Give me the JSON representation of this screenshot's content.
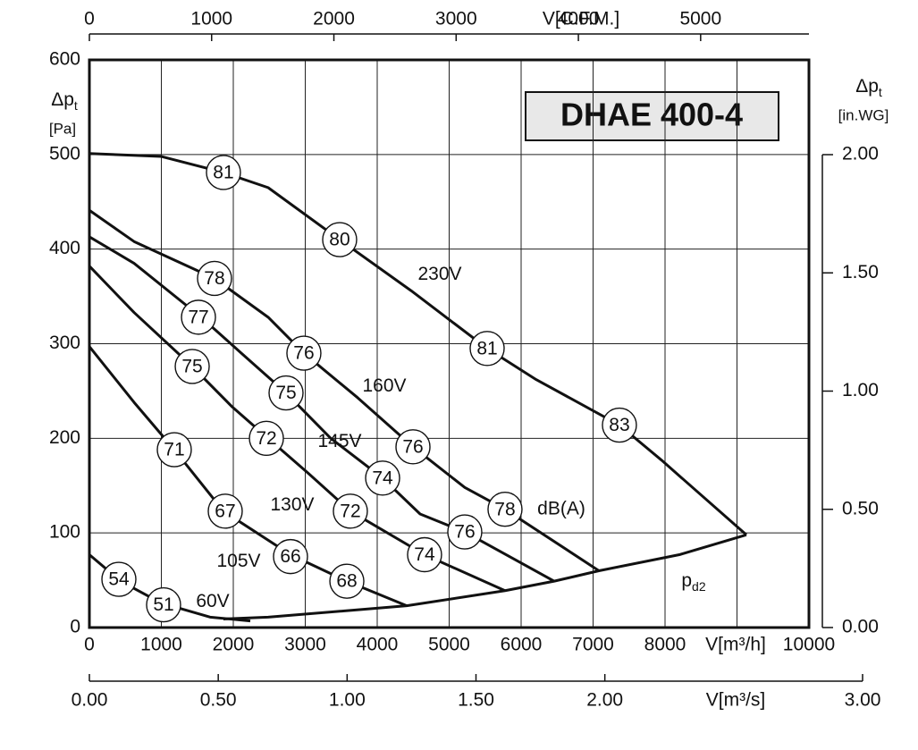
{
  "chart_data": {
    "type": "line",
    "title": "DHAE 400-4",
    "y_label": {
      "main": "Δp",
      "sub": "t",
      "unit": "[Pa]"
    },
    "y2_label": {
      "main": "Δp",
      "sub": "t",
      "unit": "[in.WG]"
    },
    "x_label": "V[m³/h]",
    "x2_label": "V[C.F.M.]",
    "x3_label": "V[m³/s]",
    "xlim": [
      0,
      10000
    ],
    "xticks": [
      0,
      1000,
      2000,
      3000,
      4000,
      5000,
      6000,
      7000,
      8000,
      {
        "value": 9000,
        "label": null
      },
      10000
    ],
    "ylim": [
      0,
      600
    ],
    "yticks": [
      0,
      100,
      200,
      300,
      400,
      500,
      600
    ],
    "x2lim": [
      0,
      5886
    ],
    "x2ticks": [
      0,
      1000,
      2000,
      3000,
      4000,
      5000
    ],
    "x3lim": [
      0,
      3
    ],
    "x3ticks": [
      {
        "value": 0,
        "label": "0.00"
      },
      {
        "value": 0.5,
        "label": "0.50"
      },
      {
        "value": 1,
        "label": "1.00"
      },
      {
        "value": 1.5,
        "label": "1.50"
      },
      {
        "value": 2,
        "label": "2.00"
      },
      {
        "value": 3,
        "label": "3.00"
      }
    ],
    "y2lim": [
      0,
      2
    ],
    "y2ticks": [
      {
        "value": 0,
        "label": "0.00"
      },
      {
        "value": 0.5,
        "label": "0.50"
      },
      {
        "value": 1,
        "label": "1.00"
      },
      {
        "value": 1.5,
        "label": "1.50"
      },
      {
        "value": 2,
        "label": "2.00"
      }
    ],
    "grid": true,
    "color": "#111111",
    "series": [
      {
        "name": "230V",
        "x": [
          0,
          994,
          1863,
          2484,
          3478,
          4472,
          5528,
          6211,
          7366,
          7950,
          9130
        ],
        "values": [
          501,
          498,
          481,
          465,
          410,
          356,
          295,
          262,
          214,
          177,
          98
        ]
      },
      {
        "name": "160V",
        "x": [
          0,
          621,
          1739,
          2484,
          2981,
          3727,
          4497,
          5217,
          5776,
          7081
        ],
        "values": [
          441,
          408,
          369,
          328,
          290,
          243,
          191,
          148,
          125,
          60
        ]
      },
      {
        "name": "145V",
        "x": [
          0,
          621,
          1553,
          2112,
          2733,
          3354,
          4075,
          4596,
          5217,
          6460
        ],
        "values": [
          413,
          385,
          328,
          290,
          248,
          200,
          158,
          120,
          101,
          49
        ]
      },
      {
        "name": "130V",
        "x": [
          0,
          621,
          1429,
          1988,
          2484,
          3043,
          3627,
          4658,
          5776
        ],
        "values": [
          382,
          333,
          276,
          233,
          200,
          163,
          123,
          77,
          39
        ]
      },
      {
        "name": "105V",
        "x": [
          0,
          621,
          1180,
          1863,
          2795,
          3578,
          4410
        ],
        "values": [
          297,
          238,
          188,
          123,
          77,
          49,
          23
        ]
      },
      {
        "name": "60V",
        "x": [
          0,
          435,
          994,
          1677,
          2236
        ],
        "values": [
          77,
          49,
          26,
          11,
          7
        ]
      },
      {
        "name": "p",
        "name_sub": "d2",
        "x": [
          1863,
          2484,
          4410,
          5776,
          6460,
          7081,
          8199,
          9130
        ],
        "values": [
          9,
          11,
          23,
          39,
          49,
          60,
          77,
          98
        ]
      }
    ],
    "db_unit": "dB(A)",
    "db_labels": [
      {
        "text": "81",
        "x": 1863,
        "y": 481
      },
      {
        "text": "80",
        "x": 3478,
        "y": 410
      },
      {
        "text": "81",
        "x": 5528,
        "y": 295
      },
      {
        "text": "83",
        "x": 7366,
        "y": 214
      },
      {
        "text": "78",
        "x": 1739,
        "y": 369
      },
      {
        "text": "76",
        "x": 2981,
        "y": 290
      },
      {
        "text": "76",
        "x": 4497,
        "y": 191
      },
      {
        "text": "78",
        "x": 5776,
        "y": 125
      },
      {
        "text": "77",
        "x": 1516,
        "y": 328
      },
      {
        "text": "75",
        "x": 2733,
        "y": 248
      },
      {
        "text": "74",
        "x": 4075,
        "y": 158
      },
      {
        "text": "76",
        "x": 5217,
        "y": 101
      },
      {
        "text": "75",
        "x": 1429,
        "y": 276
      },
      {
        "text": "72",
        "x": 2460,
        "y": 200
      },
      {
        "text": "72",
        "x": 3627,
        "y": 123
      },
      {
        "text": "74",
        "x": 4658,
        "y": 77
      },
      {
        "text": "71",
        "x": 1180,
        "y": 188
      },
      {
        "text": "67",
        "x": 1888,
        "y": 123
      },
      {
        "text": "66",
        "x": 2795,
        "y": 75
      },
      {
        "text": "68",
        "x": 3578,
        "y": 49
      },
      {
        "text": "54",
        "x": 410,
        "y": 51
      },
      {
        "text": "51",
        "x": 1031,
        "y": 24
      }
    ]
  }
}
